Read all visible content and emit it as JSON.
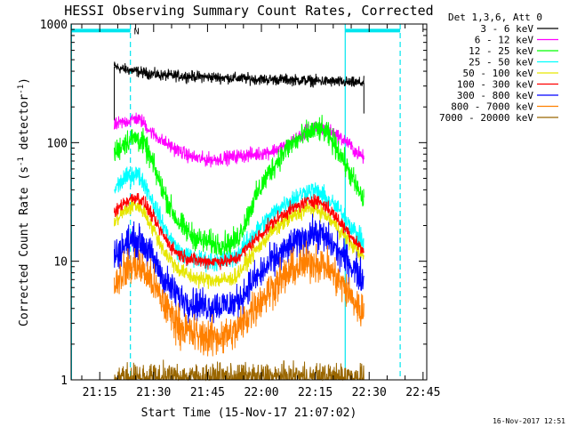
{
  "chart_data": {
    "type": "line",
    "title": "HESSI Observing Summary Count Rates, Corrected",
    "xlabel": "Start Time (15-Nov-17 21:07:02)",
    "ylabel_main": "Corrected Count Rate (s",
    "ylabel_sup1": "-1",
    "ylabel_mid": " detector",
    "ylabel_sup2": "-1",
    "ylabel_end": ")",
    "footer_timestamp": "16-Nov-2017 12:51",
    "legend_header": "Det 1,3,6, Att 0",
    "legend_position": "right",
    "x_unit": "minutes since 21:07:02",
    "xlim": [
      0,
      99
    ],
    "ylim": [
      1,
      1000
    ],
    "y_scale": "log",
    "x_ticks": [
      {
        "value": 7.97,
        "label": "21:15"
      },
      {
        "value": 22.97,
        "label": "21:30"
      },
      {
        "value": 37.97,
        "label": "21:45"
      },
      {
        "value": 52.97,
        "label": "22:00"
      },
      {
        "value": 67.97,
        "label": "22:15"
      },
      {
        "value": 82.97,
        "label": "22:30"
      },
      {
        "value": 97.97,
        "label": "22:45"
      }
    ],
    "y_ticks": [
      {
        "value": 1,
        "label": "1"
      },
      {
        "value": 10,
        "label": "10"
      },
      {
        "value": 100,
        "label": "100"
      },
      {
        "value": 1000,
        "label": "1000"
      }
    ],
    "annotations": {
      "night_label": "N",
      "bars": [
        {
          "x_start": 0.1,
          "x_end": 16.5,
          "y": 880
        },
        {
          "x_start": 76.3,
          "x_end": 91.6,
          "y": 880
        }
      ],
      "solid_lines": [
        0.1,
        76.3
      ],
      "dashed_lines": [
        16.5,
        91.6
      ]
    },
    "data_x_range": [
      12.0,
      81.5
    ],
    "series": [
      {
        "name": "3 - 6 keV",
        "color": "#000000",
        "noise": 0.04,
        "points": [
          [
            12.0,
            440
          ],
          [
            14,
            420
          ],
          [
            16,
            410
          ],
          [
            20,
            390
          ],
          [
            25,
            370
          ],
          [
            30,
            365
          ],
          [
            35,
            360
          ],
          [
            40,
            355
          ],
          [
            45,
            350
          ],
          [
            50,
            345
          ],
          [
            55,
            340
          ],
          [
            60,
            340
          ],
          [
            65,
            335
          ],
          [
            70,
            330
          ],
          [
            75,
            325
          ],
          [
            78,
            320
          ],
          [
            81.5,
            320
          ]
        ]
      },
      {
        "name": "6 - 12 keV",
        "color": "#ff00ff",
        "noise": 0.05,
        "points": [
          [
            12.0,
            140
          ],
          [
            15,
            150
          ],
          [
            18,
            160
          ],
          [
            20,
            150
          ],
          [
            22,
            125
          ],
          [
            25,
            105
          ],
          [
            28,
            92
          ],
          [
            31,
            82
          ],
          [
            34,
            75
          ],
          [
            37,
            72
          ],
          [
            40,
            72
          ],
          [
            44,
            75
          ],
          [
            48,
            78
          ],
          [
            52,
            80
          ],
          [
            56,
            85
          ],
          [
            60,
            95
          ],
          [
            63,
            110
          ],
          [
            66,
            125
          ],
          [
            69,
            135
          ],
          [
            71,
            130
          ],
          [
            74,
            115
          ],
          [
            77,
            100
          ],
          [
            79,
            85
          ],
          [
            81.5,
            75
          ]
        ]
      },
      {
        "name": "12 - 25 keV",
        "color": "#00ff00",
        "noise": 0.09,
        "points": [
          [
            12.0,
            80
          ],
          [
            14,
            95
          ],
          [
            16,
            105
          ],
          [
            18,
            110
          ],
          [
            20,
            100
          ],
          [
            22,
            75
          ],
          [
            24,
            52
          ],
          [
            26,
            37
          ],
          [
            28,
            27
          ],
          [
            30,
            21
          ],
          [
            33,
            17
          ],
          [
            36,
            15
          ],
          [
            40,
            14
          ],
          [
            44,
            14
          ],
          [
            46,
            15
          ],
          [
            48,
            20
          ],
          [
            50,
            28
          ],
          [
            52,
            38
          ],
          [
            55,
            55
          ],
          [
            58,
            75
          ],
          [
            61,
            95
          ],
          [
            64,
            110
          ],
          [
            67,
            125
          ],
          [
            69,
            130
          ],
          [
            71,
            120
          ],
          [
            73,
            100
          ],
          [
            75,
            80
          ],
          [
            77,
            60
          ],
          [
            79,
            45
          ],
          [
            81.5,
            32
          ]
        ]
      },
      {
        "name": "25 - 50 keV",
        "color": "#00ffff",
        "noise": 0.07,
        "points": [
          [
            12.0,
            40
          ],
          [
            14,
            47
          ],
          [
            16,
            52
          ],
          [
            18,
            55
          ],
          [
            20,
            48
          ],
          [
            22,
            36
          ],
          [
            24,
            26
          ],
          [
            26,
            19
          ],
          [
            28,
            15
          ],
          [
            30,
            12
          ],
          [
            34,
            10.5
          ],
          [
            38,
            10
          ],
          [
            42,
            10
          ],
          [
            45,
            10.5
          ],
          [
            47,
            12
          ],
          [
            50,
            16
          ],
          [
            53,
            20
          ],
          [
            56,
            25
          ],
          [
            59,
            30
          ],
          [
            62,
            34
          ],
          [
            65,
            38
          ],
          [
            67,
            40
          ],
          [
            69,
            38
          ],
          [
            71,
            34
          ],
          [
            73,
            30
          ],
          [
            75,
            26
          ],
          [
            77,
            22
          ],
          [
            79,
            18
          ],
          [
            81.5,
            14
          ]
        ]
      },
      {
        "name": "50 - 100 keV",
        "color": "#e6e600",
        "noise": 0.06,
        "points": [
          [
            12.0,
            21
          ],
          [
            14,
            25
          ],
          [
            16,
            28
          ],
          [
            18,
            30
          ],
          [
            20,
            27
          ],
          [
            22,
            21
          ],
          [
            24,
            16
          ],
          [
            26,
            12
          ],
          [
            28,
            10
          ],
          [
            30,
            8.5
          ],
          [
            33,
            7.5
          ],
          [
            36,
            7
          ],
          [
            40,
            7
          ],
          [
            44,
            7
          ],
          [
            46,
            7.5
          ],
          [
            48,
            9
          ],
          [
            50,
            11
          ],
          [
            53,
            14
          ],
          [
            56,
            18
          ],
          [
            59,
            21
          ],
          [
            62,
            24
          ],
          [
            65,
            27
          ],
          [
            67,
            28
          ],
          [
            69,
            27
          ],
          [
            71,
            24
          ],
          [
            73,
            21
          ],
          [
            75,
            18
          ],
          [
            77,
            15
          ],
          [
            79,
            13
          ],
          [
            81.5,
            11
          ]
        ]
      },
      {
        "name": "100 - 300 keV",
        "color": "#ff0000",
        "noise": 0.05,
        "points": [
          [
            12.0,
            25
          ],
          [
            14,
            30
          ],
          [
            16,
            33
          ],
          [
            18,
            35
          ],
          [
            20,
            32
          ],
          [
            22,
            26
          ],
          [
            24,
            20
          ],
          [
            26,
            16
          ],
          [
            28,
            13
          ],
          [
            30,
            11.5
          ],
          [
            33,
            10.5
          ],
          [
            36,
            10
          ],
          [
            40,
            10
          ],
          [
            44,
            10
          ],
          [
            46,
            10.5
          ],
          [
            48,
            12
          ],
          [
            50,
            14
          ],
          [
            53,
            17
          ],
          [
            56,
            21
          ],
          [
            59,
            25
          ],
          [
            62,
            28
          ],
          [
            65,
            31
          ],
          [
            67,
            33
          ],
          [
            69,
            32
          ],
          [
            71,
            29
          ],
          [
            73,
            25
          ],
          [
            75,
            21
          ],
          [
            77,
            18
          ],
          [
            79,
            15
          ],
          [
            81.5,
            12
          ]
        ]
      },
      {
        "name": "300 - 800 keV",
        "color": "#0000ff",
        "noise": 0.12,
        "points": [
          [
            12.0,
            11
          ],
          [
            14,
            13
          ],
          [
            16,
            14.5
          ],
          [
            18,
            15
          ],
          [
            20,
            14
          ],
          [
            22,
            11.5
          ],
          [
            24,
            9
          ],
          [
            26,
            7
          ],
          [
            28,
            5.8
          ],
          [
            30,
            5
          ],
          [
            33,
            4.5
          ],
          [
            36,
            4.3
          ],
          [
            40,
            4.2
          ],
          [
            44,
            4.3
          ],
          [
            46,
            4.5
          ],
          [
            48,
            5.3
          ],
          [
            50,
            6.5
          ],
          [
            53,
            8
          ],
          [
            56,
            10
          ],
          [
            59,
            12
          ],
          [
            62,
            14
          ],
          [
            65,
            16
          ],
          [
            67,
            17
          ],
          [
            69,
            17
          ],
          [
            71,
            15.5
          ],
          [
            73,
            13.5
          ],
          [
            75,
            11.5
          ],
          [
            77,
            10
          ],
          [
            79,
            8.5
          ],
          [
            81.5,
            7
          ]
        ]
      },
      {
        "name": "800 - 7000 keV",
        "color": "#ff8000",
        "noise": 0.14,
        "points": [
          [
            12.0,
            6.5
          ],
          [
            14,
            7.8
          ],
          [
            16,
            8.8
          ],
          [
            18,
            9.2
          ],
          [
            20,
            8.5
          ],
          [
            22,
            7
          ],
          [
            24,
            5.5
          ],
          [
            26,
            4.3
          ],
          [
            28,
            3.5
          ],
          [
            30,
            2.9
          ],
          [
            33,
            2.5
          ],
          [
            36,
            2.3
          ],
          [
            40,
            2.3
          ],
          [
            44,
            2.4
          ],
          [
            46,
            2.6
          ],
          [
            48,
            3.1
          ],
          [
            50,
            3.8
          ],
          [
            53,
            4.8
          ],
          [
            56,
            6
          ],
          [
            59,
            7.3
          ],
          [
            62,
            8.5
          ],
          [
            65,
            9.5
          ],
          [
            67,
            10
          ],
          [
            69,
            9.8
          ],
          [
            71,
            9
          ],
          [
            73,
            7.8
          ],
          [
            75,
            6.6
          ],
          [
            77,
            5.5
          ],
          [
            79,
            4.5
          ],
          [
            81.5,
            3.5
          ]
        ]
      },
      {
        "name": "7000 - 20000 keV",
        "color": "#996600",
        "noise": 0.1,
        "points": [
          [
            12.0,
            1.05
          ],
          [
            81.5,
            1.05
          ]
        ]
      }
    ]
  }
}
